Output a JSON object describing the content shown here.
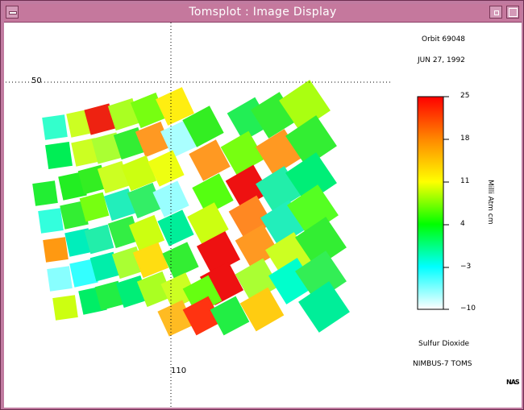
{
  "window": {
    "title": "Tomsplot : Image Display"
  },
  "header": {
    "orbit": "Orbit 69048",
    "date": "JUN 27, 1992"
  },
  "grid": {
    "lat_label": "50",
    "lon_label": "110"
  },
  "colorbar": {
    "ticks": [
      "25",
      "18",
      "11",
      "4",
      "−3",
      "−10"
    ],
    "unit": "Milli Atm cm"
  },
  "footer": {
    "quantity": "Sulfur Dioxide",
    "instrument": "NIMBUS-7 TOMS"
  },
  "logo": "NAS",
  "chart_data": {
    "type": "heatmap",
    "colorscale": [
      "#ffffff",
      "#00ffff",
      "#00ff00",
      "#ffff00",
      "#ff8800",
      "#ff0000"
    ],
    "range": [
      -10,
      25
    ]
  }
}
